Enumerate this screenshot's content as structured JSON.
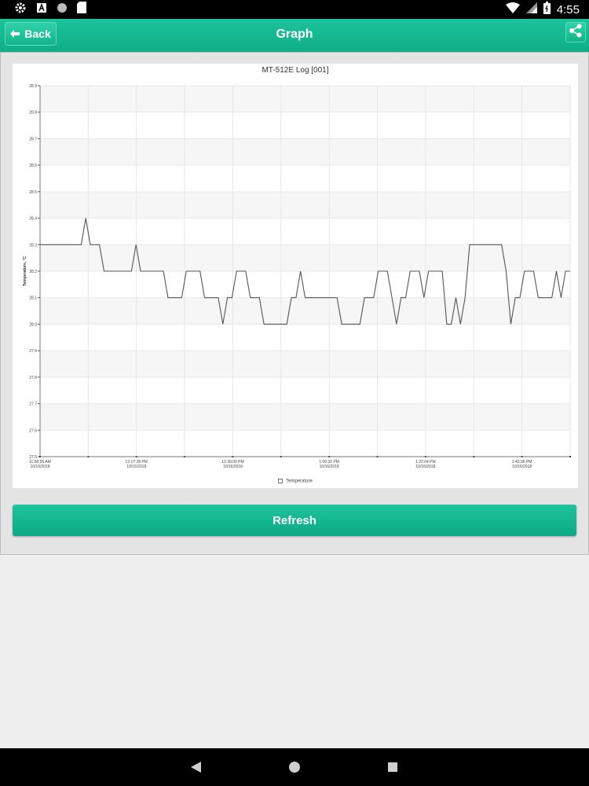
{
  "status_bar": {
    "time": "4:55",
    "icons": [
      "settings-gear-icon",
      "font-a-icon",
      "circle-icon",
      "sd-card-icon",
      "wifi-icon",
      "signal-icon",
      "battery-icon"
    ]
  },
  "toolbar": {
    "back_label": "Back",
    "title": "Graph",
    "share_icon": "share-icon"
  },
  "chart_data": {
    "type": "line",
    "title": "MT-512E Log [001]",
    "ylabel": "Temperature, °C",
    "xlabel": "",
    "ylim": [
      27.5,
      28.9
    ],
    "y_ticks": [
      "27.5",
      "27.6",
      "27.7",
      "27.8",
      "27.9",
      "28.0",
      "28.1",
      "28.2",
      "28.3",
      "28.4",
      "28.5",
      "28.6",
      "28.7",
      "28.8",
      "28.9"
    ],
    "x_tick_labels": [
      {
        "time": "11:56:56 AM",
        "date": "10/16/2018"
      },
      {
        "time": "12:17:28 PM",
        "date": "10/16/2018"
      },
      {
        "time": "12:39:00 PM",
        "date": "10/16/2018"
      },
      {
        "time": "1:00:32 PM",
        "date": "10/16/2018"
      },
      {
        "time": "1:22:04 PM",
        "date": "10/16/2018"
      },
      {
        "time": "1:43:36 PM",
        "date": "10/16/2018"
      }
    ],
    "grid": true,
    "legend": "bottom-center",
    "series": [
      {
        "name": "Temperature",
        "color": "#555555",
        "points": [
          [
            0,
            28.3
          ],
          [
            9,
            28.3
          ],
          [
            10,
            28.4
          ],
          [
            11,
            28.3
          ],
          [
            13,
            28.3
          ],
          [
            14,
            28.2
          ],
          [
            20,
            28.2
          ],
          [
            21,
            28.3
          ],
          [
            22,
            28.2
          ],
          [
            27,
            28.2
          ],
          [
            28,
            28.1
          ],
          [
            31,
            28.1
          ],
          [
            32,
            28.2
          ],
          [
            35,
            28.2
          ],
          [
            36,
            28.1
          ],
          [
            39,
            28.1
          ],
          [
            40,
            28.0
          ],
          [
            41,
            28.1
          ],
          [
            42,
            28.1
          ],
          [
            43,
            28.2
          ],
          [
            45,
            28.2
          ],
          [
            46,
            28.1
          ],
          [
            48,
            28.1
          ],
          [
            49,
            28.0
          ],
          [
            54,
            28.0
          ],
          [
            55,
            28.1
          ],
          [
            56,
            28.1
          ],
          [
            57,
            28.2
          ],
          [
            58,
            28.1
          ],
          [
            65,
            28.1
          ],
          [
            66,
            28.0
          ],
          [
            70,
            28.0
          ],
          [
            71,
            28.1
          ],
          [
            73,
            28.1
          ],
          [
            74,
            28.2
          ],
          [
            76,
            28.2
          ],
          [
            77,
            28.1
          ],
          [
            78,
            28.0
          ],
          [
            79,
            28.1
          ],
          [
            80,
            28.1
          ],
          [
            81,
            28.2
          ],
          [
            83,
            28.2
          ],
          [
            84,
            28.1
          ],
          [
            85,
            28.2
          ],
          [
            88,
            28.2
          ],
          [
            89,
            28.0
          ],
          [
            90,
            28.0
          ],
          [
            91,
            28.1
          ],
          [
            92,
            28.0
          ],
          [
            93,
            28.1
          ],
          [
            94,
            28.3
          ],
          [
            101,
            28.3
          ],
          [
            102,
            28.2
          ],
          [
            103,
            28.0
          ],
          [
            104,
            28.1
          ],
          [
            105,
            28.1
          ],
          [
            106,
            28.2
          ],
          [
            108,
            28.2
          ],
          [
            109,
            28.1
          ],
          [
            112,
            28.1
          ],
          [
            113,
            28.2
          ],
          [
            114,
            28.1
          ],
          [
            115,
            28.2
          ],
          [
            116,
            28.2
          ]
        ]
      }
    ]
  },
  "legend": {
    "label": "Temperature"
  },
  "refresh_label": "Refresh"
}
